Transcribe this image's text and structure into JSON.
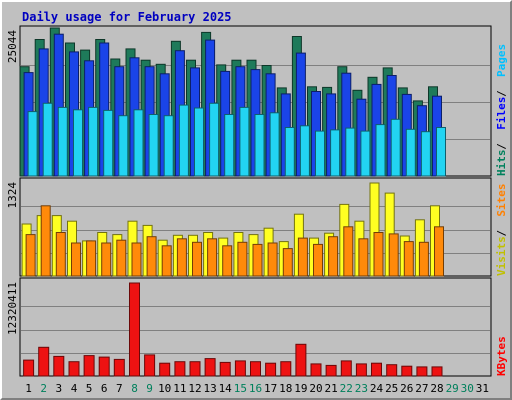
{
  "chart_data": {
    "type": "bar",
    "title": "Daily usage for February 2025",
    "days": [
      "1",
      "2",
      "3",
      "4",
      "5",
      "6",
      "7",
      "8",
      "9",
      "10",
      "11",
      "12",
      "13",
      "14",
      "15",
      "16",
      "17",
      "18",
      "19",
      "20",
      "21",
      "22",
      "23",
      "24",
      "25",
      "26",
      "27",
      "28",
      "29",
      "30",
      "31"
    ],
    "weekend_days": [
      "2",
      "8",
      "9",
      "15",
      "16",
      "22",
      "23",
      "29",
      "30"
    ],
    "grid": true,
    "panels": [
      {
        "id": "hits",
        "ymax_label": "25044",
        "ymax": 25044,
        "legend": [
          {
            "text": "Hits",
            "color": "#00805c"
          },
          {
            "text": "Files",
            "color": "#0000ff"
          },
          {
            "text": "Pages",
            "color": "#00c0ff"
          }
        ],
        "series": [
          {
            "name": "Hits",
            "color": "#1e7a5a",
            "values": [
              18500,
              23100,
              25044,
              22500,
              21300,
              23100,
              19800,
              21500,
              19600,
              18900,
              22800,
              19600,
              24300,
              18800,
              19600,
              19600,
              18700,
              14900,
              23600,
              15100,
              15000,
              18500,
              14500,
              16700,
              18300,
              14900,
              12700,
              15100,
              null,
              null,
              null
            ]
          },
          {
            "name": "Files",
            "color": "#1a44e8",
            "values": [
              17500,
              21500,
              24000,
              21000,
              19500,
              22500,
              18500,
              20000,
              18500,
              17300,
              21200,
              18300,
              23000,
              17700,
              18500,
              18000,
              17300,
              13900,
              20800,
              14300,
              13900,
              17400,
              13000,
              15500,
              17000,
              13800,
              11900,
              13500,
              null,
              null,
              null
            ]
          },
          {
            "name": "Pages",
            "color": "#22d4f2",
            "values": [
              10900,
              12300,
              11600,
              11200,
              11600,
              11100,
              10200,
              11200,
              10400,
              10200,
              12000,
              11500,
              12300,
              10400,
              11600,
              10400,
              10700,
              8200,
              8500,
              7600,
              7800,
              8100,
              7600,
              8700,
              9600,
              7900,
              7500,
              8200,
              null,
              null,
              null
            ]
          }
        ]
      },
      {
        "id": "visits",
        "ymax_label": "1324",
        "ymax": 1324,
        "legend": [
          {
            "text": "Visits",
            "color": "#c0c000"
          },
          {
            "text": "Sites",
            "color": "#ff8000"
          }
        ],
        "series": [
          {
            "name": "Visits",
            "color": "#ffff22",
            "values": [
              740,
              860,
              860,
              780,
              500,
              620,
              590,
              780,
              720,
              510,
              580,
              580,
              620,
              540,
              620,
              590,
              680,
              490,
              880,
              540,
              610,
              1020,
              780,
              1324,
              1180,
              570,
              800,
              1000,
              null,
              null,
              null
            ]
          },
          {
            "name": "Sites",
            "color": "#ff8a0a",
            "values": [
              590,
              1000,
              620,
              470,
              500,
              470,
              510,
              470,
              560,
              430,
              530,
              480,
              530,
              430,
              480,
              450,
              470,
              390,
              540,
              450,
              560,
              700,
              530,
              620,
              600,
              490,
              480,
              700,
              null,
              null,
              null
            ]
          }
        ]
      },
      {
        "id": "kbytes",
        "ymax_label": "12320411",
        "ymax": 12320411,
        "legend": [
          {
            "text": "KBytes",
            "color": "#ff0000"
          }
        ],
        "series": [
          {
            "name": "KBytes",
            "color": "#ee1212",
            "values": [
              2100000,
              3800000,
              2600000,
              1900000,
              2700000,
              2500000,
              2200000,
              12320411,
              2800000,
              1700000,
              1900000,
              1900000,
              2300000,
              1800000,
              2000000,
              1900000,
              1700000,
              1900000,
              4200000,
              1600000,
              1400000,
              2000000,
              1600000,
              1700000,
              1500000,
              1300000,
              1200000,
              1200000,
              null,
              null,
              null
            ]
          }
        ]
      }
    ]
  },
  "colors": {
    "background": "#c0c0c0",
    "title": "#0000c0",
    "weekday_label": "#000000",
    "weekend_label": "#00805c"
  }
}
